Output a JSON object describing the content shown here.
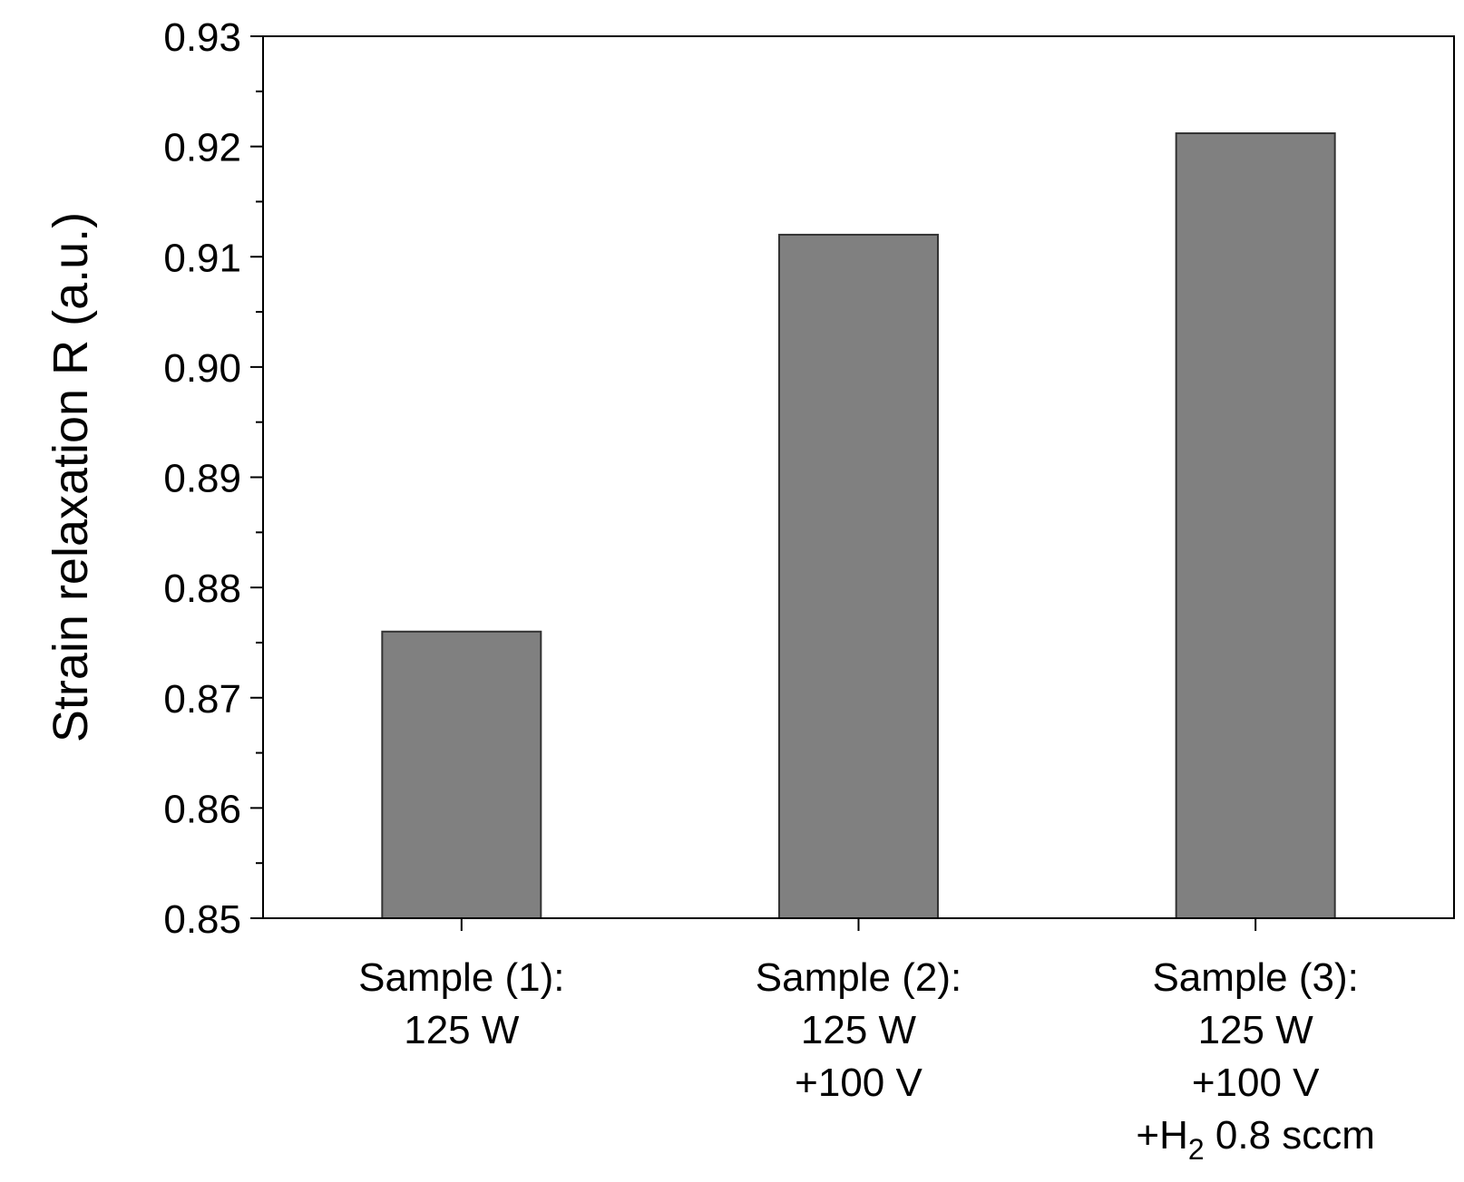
{
  "chart_data": {
    "type": "bar",
    "title": "",
    "xlabel": "",
    "ylabel": "Strain relaxation R (a.u.)",
    "ylim": [
      0.85,
      0.93
    ],
    "yticks": [
      "0.85",
      "0.86",
      "0.87",
      "0.88",
      "0.89",
      "0.90",
      "0.91",
      "0.92",
      "0.93"
    ],
    "grid": false,
    "categories": [
      "Sample (1): 125 W",
      "Sample (2): 125 W +100 V",
      "Sample (3): 125 W +100 V +H2 0.8 sccm"
    ],
    "category_labels": [
      {
        "lines": [
          "Sample (1):",
          "125 W"
        ]
      },
      {
        "lines": [
          "Sample (2):",
          "125 W",
          "+100 V"
        ]
      },
      {
        "lines": [
          "Sample (3):",
          "125 W",
          "+100 V"
        ],
        "h2_line": {
          "prefix": "+H",
          "subscript": "2",
          "suffix": " 0.8 sccm"
        }
      }
    ],
    "values": [
      0.876,
      0.912,
      0.9212
    ],
    "bar_color": "#808080",
    "edge_color": "#333333"
  }
}
